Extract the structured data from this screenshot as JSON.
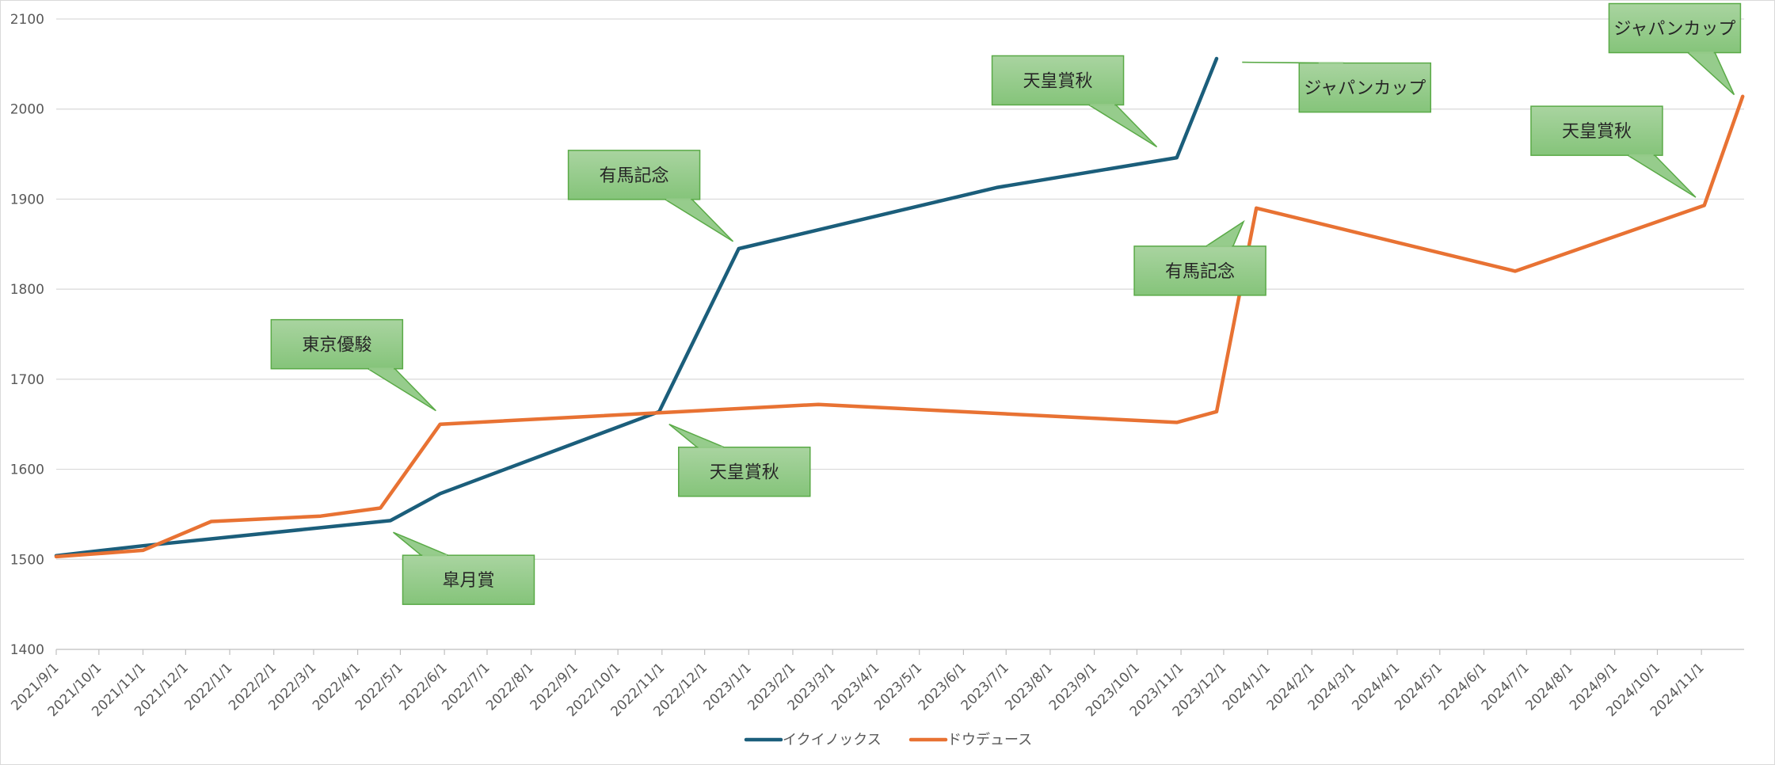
{
  "chart_data": {
    "type": "line",
    "ylim": [
      1400,
      2100
    ],
    "yticks": [
      1400,
      1500,
      1600,
      1700,
      1800,
      1900,
      2000,
      2100
    ],
    "grid": true,
    "legend_position": "bottom",
    "xlim": [
      "2021/9/1",
      "2024/12/1"
    ],
    "x_tick_labels": [
      "2021/9/1",
      "2021/10/1",
      "2021/11/1",
      "2021/12/1",
      "2022/1/1",
      "2022/2/1",
      "2022/3/1",
      "2022/4/1",
      "2022/5/1",
      "2022/6/1",
      "2022/7/1",
      "2022/8/1",
      "2022/9/1",
      "2022/10/1",
      "2022/11/1",
      "2022/12/1",
      "2023/1/1",
      "2023/2/1",
      "2023/3/1",
      "2023/4/1",
      "2023/5/1",
      "2023/6/1",
      "2023/7/1",
      "2023/8/1",
      "2023/9/1",
      "2023/10/1",
      "2023/11/1",
      "2023/12/1",
      "2024/1/1",
      "2024/2/1",
      "2024/3/1",
      "2024/4/1",
      "2024/5/1",
      "2024/6/1",
      "2024/7/1",
      "2024/8/1",
      "2024/9/1",
      "2024/10/1",
      "2024/11/1"
    ],
    "series": [
      {
        "name": "イクイノックス",
        "color": "#1b5e7b",
        "points": [
          {
            "x": "2021/9/1",
            "y": 1504
          },
          {
            "x": "2021/11/1",
            "y": 1515
          },
          {
            "x": "2022/4/24",
            "y": 1543
          },
          {
            "x": "2022/5/29",
            "y": 1573
          },
          {
            "x": "2022/10/30",
            "y": 1664
          },
          {
            "x": "2022/12/25",
            "y": 1845
          },
          {
            "x": "2023/6/25",
            "y": 1913
          },
          {
            "x": "2023/10/29",
            "y": 1946
          },
          {
            "x": "2023/11/26",
            "y": 2056
          }
        ]
      },
      {
        "name": "ドウデュース",
        "color": "#e87233",
        "points": [
          {
            "x": "2021/9/1",
            "y": 1503
          },
          {
            "x": "2021/11/1",
            "y": 1510
          },
          {
            "x": "2021/12/19",
            "y": 1542
          },
          {
            "x": "2022/3/6",
            "y": 1548
          },
          {
            "x": "2022/4/17",
            "y": 1557
          },
          {
            "x": "2022/5/29",
            "y": 1650
          },
          {
            "x": "2023/2/19",
            "y": 1672
          },
          {
            "x": "2023/10/29",
            "y": 1652
          },
          {
            "x": "2023/11/26",
            "y": 1664
          },
          {
            "x": "2023/12/24",
            "y": 1890
          },
          {
            "x": "2024/6/23",
            "y": 1820
          },
          {
            "x": "2024/11/3",
            "y": 1893
          },
          {
            "x": "2024/11/30",
            "y": 2014
          }
        ]
      }
    ],
    "annotations": [
      {
        "text": "東京優駿",
        "x": "2022/5/26",
        "y": 1665,
        "placement": "above-left"
      },
      {
        "text": "皐月賞",
        "x": "2022/4/26",
        "y": 1530,
        "placement": "below-right"
      },
      {
        "text": "天皇賞秋",
        "x": "2022/10/37",
        "y": 1650,
        "placement": "below-right"
      },
      {
        "text": "有馬記念",
        "x": "2022/12/21",
        "y": 1853,
        "placement": "above-left"
      },
      {
        "text": "天皇賞秋",
        "x": "2023/10/15",
        "y": 1958,
        "placement": "above-left"
      },
      {
        "text": "有馬記念",
        "x": "2023/12/15",
        "y": 1875,
        "placement": "below-left"
      },
      {
        "text": "ジャパンカップ",
        "x": "2023/12/14",
        "y": 2052,
        "placement": "below-right"
      },
      {
        "text": "天皇賞秋",
        "x": "2024/10/28",
        "y": 1902,
        "placement": "above-left"
      },
      {
        "text": "ジャパンカップ",
        "x": "2024/11/24",
        "y": 2016,
        "placement": "above-left"
      }
    ]
  }
}
